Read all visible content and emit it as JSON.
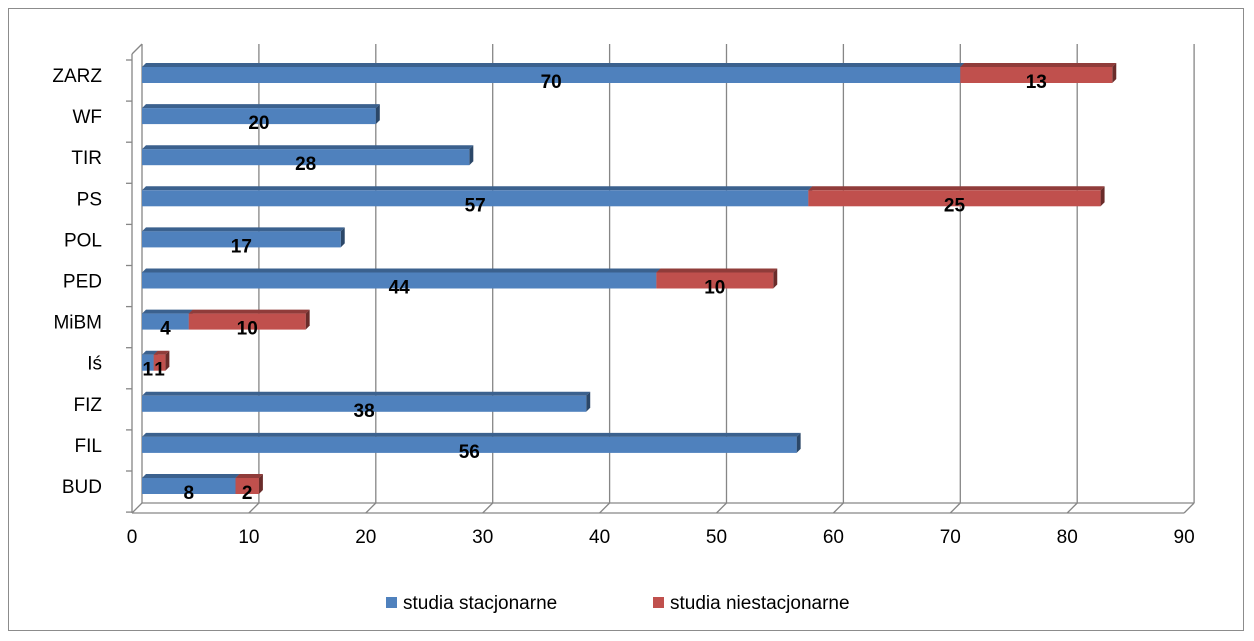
{
  "chart_data": {
    "type": "bar",
    "orientation": "horizontal",
    "stacked": true,
    "three_d": true,
    "categories": [
      "ZARZ",
      "WF",
      "TIR",
      "PS",
      "POL",
      "PED",
      "MiBM",
      "Iś",
      "FIZ",
      "FIL",
      "BUD"
    ],
    "series": [
      {
        "name": "studia stacjonarne",
        "color": "#4f81bd",
        "values": [
          70,
          20,
          28,
          57,
          17,
          44,
          4,
          1,
          38,
          56,
          8
        ]
      },
      {
        "name": "studia niestacjonarne",
        "color": "#c0504d",
        "values": [
          13,
          0,
          0,
          25,
          0,
          10,
          10,
          1,
          0,
          0,
          2
        ]
      }
    ],
    "xlim": [
      0,
      90
    ],
    "x_ticks": [
      "0",
      "10",
      "20",
      "30",
      "40",
      "50",
      "60",
      "70",
      "80",
      "90"
    ],
    "grid": true,
    "legend_position": "bottom",
    "data_labels": true
  }
}
